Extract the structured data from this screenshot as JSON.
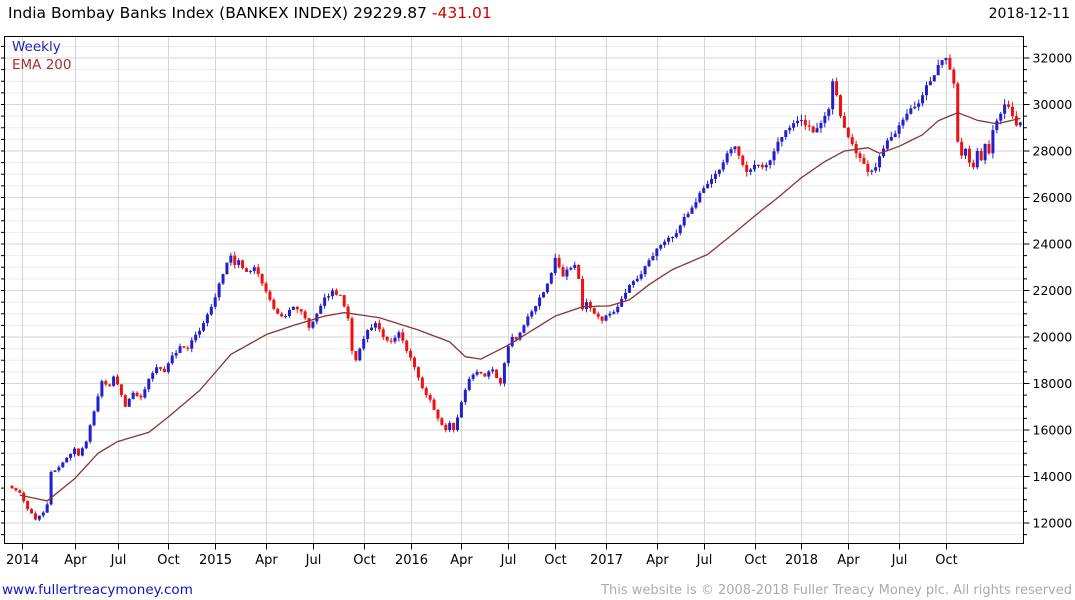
{
  "header": {
    "title_text": "India Bombay Banks Index (BANKEX INDEX) 29229.87",
    "change": "-431.01",
    "date": "2018-12-11"
  },
  "legend": {
    "timeframe": "Weekly",
    "overlay": "EMA 200"
  },
  "footer": {
    "website": "www.fullertreacymoney.com",
    "copyright": "This website is © 2008-2018 Fuller Treacy Money plc. All rights reserved"
  },
  "colors": {
    "up_candle": "#2020cc",
    "down_candle": "#ee1111",
    "ema_line": "#8b3232",
    "grid_minor": "#ececec",
    "grid_major": "#d6d6d6",
    "axis": "#000000",
    "change_text": "#d40000",
    "link": "#1111cc",
    "copyright_text": "#ababab"
  },
  "chart_data": {
    "type": "candlestick",
    "title": "India Bombay Banks Index (BANKEX INDEX)",
    "timeframe": "Weekly",
    "overlay": "EMA 200",
    "last_close": 29229.87,
    "change": -431.01,
    "date": "2018-12-11",
    "ylim": [
      11140,
      32950
    ],
    "y_major_ticks": [
      12000,
      14000,
      16000,
      18000,
      20000,
      22000,
      24000,
      26000,
      28000,
      30000,
      32000
    ],
    "y_minor_step": 500,
    "x_tick_labels": [
      "2014",
      "Apr",
      "Jul",
      "Oct",
      "2015",
      "Apr",
      "Jul",
      "Oct",
      "2016",
      "Apr",
      "Jul",
      "Oct",
      "2017",
      "Apr",
      "Jul",
      "Oct",
      "2018",
      "Apr",
      "Jul",
      "Oct"
    ],
    "x_tick_weeks": [
      2.6,
      16,
      27,
      40,
      52,
      65,
      77,
      90,
      102,
      115,
      127,
      139,
      152,
      165,
      177,
      190,
      202,
      214,
      227,
      239
    ],
    "weeks": 259,
    "first_open": 13600,
    "close_anchors": [
      [
        0,
        13500
      ],
      [
        2,
        13300
      ],
      [
        4,
        12600
      ],
      [
        6,
        12150
      ],
      [
        8,
        12450
      ],
      [
        9,
        12800
      ],
      [
        10,
        14200
      ],
      [
        12,
        14400
      ],
      [
        14,
        14800
      ],
      [
        16,
        15200
      ],
      [
        17,
        14900
      ],
      [
        19,
        15500
      ],
      [
        21,
        16800
      ],
      [
        23,
        18100
      ],
      [
        25,
        17900
      ],
      [
        26,
        18300
      ],
      [
        28,
        17500
      ],
      [
        29,
        17000
      ],
      [
        31,
        17600
      ],
      [
        33,
        17400
      ],
      [
        35,
        18200
      ],
      [
        37,
        18700
      ],
      [
        39,
        18500
      ],
      [
        41,
        19200
      ],
      [
        43,
        19600
      ],
      [
        45,
        19500
      ],
      [
        47,
        20100
      ],
      [
        49,
        20600
      ],
      [
        51,
        21300
      ],
      [
        53,
        22300
      ],
      [
        55,
        23200
      ],
      [
        56,
        23500
      ],
      [
        57,
        23100
      ],
      [
        58,
        23300
      ],
      [
        60,
        22800
      ],
      [
        62,
        23000
      ],
      [
        64,
        22300
      ],
      [
        66,
        21600
      ],
      [
        68,
        21000
      ],
      [
        70,
        20900
      ],
      [
        72,
        21300
      ],
      [
        74,
        21100
      ],
      [
        76,
        20400
      ],
      [
        78,
        21000
      ],
      [
        80,
        21700
      ],
      [
        82,
        22000
      ],
      [
        84,
        21800
      ],
      [
        86,
        20800
      ],
      [
        87,
        19400
      ],
      [
        88,
        19000
      ],
      [
        89,
        19500
      ],
      [
        91,
        20300
      ],
      [
        93,
        20600
      ],
      [
        95,
        20000
      ],
      [
        97,
        19800
      ],
      [
        99,
        20200
      ],
      [
        101,
        19400
      ],
      [
        103,
        18700
      ],
      [
        105,
        17800
      ],
      [
        107,
        17300
      ],
      [
        109,
        16500
      ],
      [
        111,
        16000
      ],
      [
        112,
        16300
      ],
      [
        113,
        16000
      ],
      [
        115,
        17200
      ],
      [
        117,
        18200
      ],
      [
        119,
        18500
      ],
      [
        121,
        18300
      ],
      [
        123,
        18600
      ],
      [
        125,
        18000
      ],
      [
        127,
        19600
      ],
      [
        128,
        20000
      ],
      [
        129,
        19900
      ],
      [
        131,
        20500
      ],
      [
        133,
        21100
      ],
      [
        135,
        21700
      ],
      [
        137,
        22300
      ],
      [
        139,
        23400
      ],
      [
        140,
        23000
      ],
      [
        141,
        22600
      ],
      [
        142,
        22900
      ],
      [
        144,
        23100
      ],
      [
        145,
        22500
      ],
      [
        146,
        21200
      ],
      [
        147,
        21500
      ],
      [
        149,
        21000
      ],
      [
        151,
        20700
      ],
      [
        153,
        21000
      ],
      [
        155,
        21300
      ],
      [
        157,
        21900
      ],
      [
        159,
        22400
      ],
      [
        161,
        22700
      ],
      [
        163,
        23300
      ],
      [
        165,
        23800
      ],
      [
        167,
        24100
      ],
      [
        169,
        24300
      ],
      [
        171,
        24800
      ],
      [
        173,
        25300
      ],
      [
        175,
        25800
      ],
      [
        177,
        26400
      ],
      [
        179,
        26800
      ],
      [
        181,
        27200
      ],
      [
        183,
        27900
      ],
      [
        185,
        28200
      ],
      [
        186,
        27800
      ],
      [
        187,
        27400
      ],
      [
        188,
        27100
      ],
      [
        190,
        27400
      ],
      [
        192,
        27300
      ],
      [
        194,
        27600
      ],
      [
        196,
        28400
      ],
      [
        197,
        28600
      ],
      [
        199,
        29000
      ],
      [
        201,
        29300
      ],
      [
        203,
        29100
      ],
      [
        205,
        28800
      ],
      [
        207,
        29200
      ],
      [
        209,
        29800
      ],
      [
        210,
        31000
      ],
      [
        211,
        30400
      ],
      [
        212,
        29500
      ],
      [
        213,
        29000
      ],
      [
        215,
        28300
      ],
      [
        217,
        27700
      ],
      [
        219,
        27100
      ],
      [
        221,
        27300
      ],
      [
        223,
        28100
      ],
      [
        225,
        28600
      ],
      [
        227,
        29100
      ],
      [
        229,
        29600
      ],
      [
        231,
        29900
      ],
      [
        233,
        30400
      ],
      [
        235,
        31000
      ],
      [
        237,
        31700
      ],
      [
        239,
        32000
      ],
      [
        240,
        31500
      ],
      [
        241,
        30900
      ],
      [
        242,
        28400
      ],
      [
        243,
        27800
      ],
      [
        244,
        28100
      ],
      [
        245,
        27500
      ],
      [
        246,
        27300
      ],
      [
        247,
        28000
      ],
      [
        248,
        27600
      ],
      [
        249,
        28300
      ],
      [
        250,
        27900
      ],
      [
        251,
        28900
      ],
      [
        253,
        29600
      ],
      [
        254,
        30000
      ],
      [
        255,
        29900
      ],
      [
        256,
        29500
      ],
      [
        257,
        29100
      ],
      [
        258,
        29230
      ]
    ],
    "ema_anchors": [
      [
        2,
        13200
      ],
      [
        9,
        12950
      ],
      [
        16,
        13900
      ],
      [
        22,
        15000
      ],
      [
        27,
        15500
      ],
      [
        35,
        15900
      ],
      [
        40,
        16560
      ],
      [
        48,
        17700
      ],
      [
        56,
        19250
      ],
      [
        65,
        20100
      ],
      [
        72,
        20500
      ],
      [
        80,
        20900
      ],
      [
        85,
        21050
      ],
      [
        94,
        20830
      ],
      [
        104,
        20300
      ],
      [
        112,
        19790
      ],
      [
        116,
        19150
      ],
      [
        120,
        19050
      ],
      [
        127,
        19650
      ],
      [
        139,
        20900
      ],
      [
        146,
        21300
      ],
      [
        153,
        21340
      ],
      [
        158,
        21600
      ],
      [
        163,
        22250
      ],
      [
        169,
        22900
      ],
      [
        178,
        23550
      ],
      [
        185,
        24500
      ],
      [
        190,
        25200
      ],
      [
        196,
        26000
      ],
      [
        202,
        26850
      ],
      [
        208,
        27550
      ],
      [
        213,
        28000
      ],
      [
        219,
        28140
      ],
      [
        222,
        27900
      ],
      [
        227,
        28200
      ],
      [
        233,
        28700
      ],
      [
        237,
        29300
      ],
      [
        242,
        29650
      ],
      [
        247,
        29320
      ],
      [
        252,
        29170
      ],
      [
        258,
        29400
      ]
    ]
  }
}
